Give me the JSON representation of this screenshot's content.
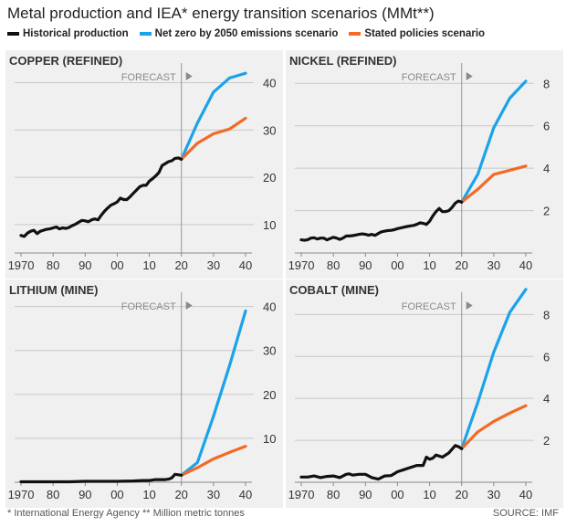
{
  "title": "Metal production and IEA* energy transition scenarios (MMt**)",
  "legend": [
    {
      "label": "Historical production",
      "color": "#111111"
    },
    {
      "label": "Net zero by 2050 emissions scenario",
      "color": "#1aa3e8"
    },
    {
      "label": "Stated policies scenario",
      "color": "#f26a25"
    }
  ],
  "forecast_label": "FORECAST",
  "footnotes": {
    "left": "* International Energy Agency    ** Million metric tonnes",
    "source": "SOURCE: IMF"
  },
  "x_tick_labels": [
    "1970",
    "80",
    "90",
    "00",
    "10",
    "20",
    "30",
    "40"
  ],
  "chart_data": [
    {
      "type": "line",
      "title": "COPPER (REFINED)",
      "xlim": [
        1968,
        2042
      ],
      "ylim": [
        4,
        43
      ],
      "y_ticks": [
        10,
        20,
        30,
        40
      ],
      "forecast_start": 2020,
      "series": [
        {
          "name": "Historical production",
          "color": "#111111",
          "x": [
            1970,
            1971,
            1972,
            1973,
            1974,
            1975,
            1976,
            1977,
            1978,
            1979,
            1980,
            1981,
            1982,
            1983,
            1984,
            1985,
            1986,
            1987,
            1988,
            1989,
            1990,
            1991,
            1992,
            1993,
            1994,
            1995,
            1996,
            1997,
            1998,
            1999,
            2000,
            2001,
            2002,
            2003,
            2004,
            2005,
            2006,
            2007,
            2008,
            2009,
            2010,
            2011,
            2012,
            2013,
            2014,
            2015,
            2016,
            2017,
            2018,
            2019,
            2020
          ],
          "y": [
            7.7,
            7.5,
            8.2,
            8.6,
            8.8,
            8.1,
            8.6,
            8.8,
            9.0,
            9.1,
            9.3,
            9.5,
            9.1,
            9.3,
            9.2,
            9.4,
            9.8,
            10.1,
            10.5,
            10.9,
            10.8,
            10.6,
            11.0,
            11.2,
            11.0,
            12.0,
            12.8,
            13.5,
            14.1,
            14.4,
            14.8,
            15.6,
            15.3,
            15.3,
            15.9,
            16.6,
            17.3,
            18.0,
            18.3,
            18.3,
            19.2,
            19.7,
            20.3,
            21.0,
            22.5,
            22.9,
            23.3,
            23.5,
            24.0,
            24.1,
            23.8
          ]
        },
        {
          "name": "Net zero by 2050 emissions scenario",
          "color": "#1aa3e8",
          "x": [
            2020,
            2025,
            2030,
            2035,
            2040
          ],
          "y": [
            23.8,
            31.5,
            38.0,
            41.0,
            42.0
          ]
        },
        {
          "name": "Stated policies scenario",
          "color": "#f26a25",
          "x": [
            2020,
            2025,
            2030,
            2035,
            2040
          ],
          "y": [
            23.8,
            27.2,
            29.2,
            30.2,
            32.5
          ]
        }
      ]
    },
    {
      "type": "line",
      "title": "NICKEL (REFINED)",
      "xlim": [
        1968,
        2042
      ],
      "ylim": [
        0,
        8.7
      ],
      "y_ticks": [
        2,
        4,
        6,
        8
      ],
      "forecast_start": 2020,
      "series": [
        {
          "name": "Historical production",
          "color": "#111111",
          "x": [
            1970,
            1971,
            1972,
            1973,
            1974,
            1975,
            1976,
            1977,
            1978,
            1979,
            1980,
            1981,
            1982,
            1983,
            1984,
            1985,
            1986,
            1987,
            1988,
            1989,
            1990,
            1991,
            1992,
            1993,
            1994,
            1995,
            1996,
            1997,
            1998,
            1999,
            2000,
            2001,
            2002,
            2003,
            2004,
            2005,
            2006,
            2007,
            2008,
            2009,
            2010,
            2011,
            2012,
            2013,
            2014,
            2015,
            2016,
            2017,
            2018,
            2019,
            2020
          ],
          "y": [
            0.62,
            0.6,
            0.63,
            0.7,
            0.72,
            0.66,
            0.7,
            0.7,
            0.62,
            0.68,
            0.74,
            0.7,
            0.64,
            0.7,
            0.8,
            0.8,
            0.82,
            0.85,
            0.88,
            0.9,
            0.88,
            0.84,
            0.88,
            0.83,
            0.92,
            1.0,
            1.03,
            1.06,
            1.07,
            1.1,
            1.15,
            1.18,
            1.22,
            1.25,
            1.28,
            1.3,
            1.35,
            1.42,
            1.4,
            1.35,
            1.5,
            1.75,
            1.95,
            2.1,
            1.95,
            1.95,
            2.0,
            2.15,
            2.35,
            2.45,
            2.4
          ]
        },
        {
          "name": "Net zero by 2050 emissions scenario",
          "color": "#1aa3e8",
          "x": [
            2020,
            2025,
            2030,
            2035,
            2040
          ],
          "y": [
            2.4,
            3.7,
            5.9,
            7.3,
            8.1
          ]
        },
        {
          "name": "Stated policies scenario",
          "color": "#f26a25",
          "x": [
            2020,
            2025,
            2030,
            2035,
            2040
          ],
          "y": [
            2.4,
            3.0,
            3.7,
            3.9,
            4.1
          ]
        }
      ]
    },
    {
      "type": "line",
      "title": "LITHIUM (MINE)",
      "xlim": [
        1968,
        2042
      ],
      "ylim": [
        0,
        42
      ],
      "y_ticks": [
        10,
        20,
        30,
        40
      ],
      "forecast_start": 2020,
      "series": [
        {
          "name": "Historical production",
          "color": "#111111",
          "x": [
            1970,
            1975,
            1980,
            1985,
            1990,
            1995,
            2000,
            2005,
            2008,
            2010,
            2012,
            2014,
            2015,
            2016,
            2017,
            2018,
            2019,
            2020
          ],
          "y": [
            0.1,
            0.1,
            0.1,
            0.1,
            0.2,
            0.2,
            0.2,
            0.3,
            0.4,
            0.4,
            0.6,
            0.6,
            0.6,
            0.7,
            1.0,
            1.8,
            1.7,
            1.6
          ]
        },
        {
          "name": "Net zero by 2050 emissions scenario",
          "color": "#1aa3e8",
          "x": [
            2020,
            2025,
            2030,
            2035,
            2040
          ],
          "y": [
            1.6,
            4.5,
            15.0,
            26.5,
            39.0
          ]
        },
        {
          "name": "Stated policies scenario",
          "color": "#f26a25",
          "x": [
            2020,
            2025,
            2030,
            2035,
            2040
          ],
          "y": [
            1.6,
            3.3,
            5.3,
            6.8,
            8.2
          ]
        }
      ]
    },
    {
      "type": "line",
      "title": "COBALT (MINE)",
      "xlim": [
        1968,
        2042
      ],
      "ylim": [
        0,
        8.8
      ],
      "y_ticks": [
        2,
        4,
        6,
        8
      ],
      "forecast_start": 2020,
      "series": [
        {
          "name": "Historical production",
          "color": "#111111",
          "x": [
            1970,
            1972,
            1974,
            1976,
            1978,
            1980,
            1982,
            1984,
            1985,
            1986,
            1988,
            1990,
            1992,
            1994,
            1996,
            1998,
            2000,
            2002,
            2004,
            2006,
            2008,
            2009,
            2010,
            2011,
            2012,
            2014,
            2016,
            2018,
            2019,
            2020
          ],
          "y": [
            0.25,
            0.25,
            0.3,
            0.22,
            0.28,
            0.3,
            0.22,
            0.38,
            0.4,
            0.34,
            0.38,
            0.38,
            0.22,
            0.15,
            0.3,
            0.32,
            0.5,
            0.6,
            0.7,
            0.8,
            0.8,
            1.2,
            1.1,
            1.15,
            1.3,
            1.2,
            1.4,
            1.75,
            1.7,
            1.6
          ]
        },
        {
          "name": "Net zero by 2050 emissions scenario",
          "color": "#1aa3e8",
          "x": [
            2020,
            2025,
            2030,
            2035,
            2040
          ],
          "y": [
            1.6,
            3.8,
            6.2,
            8.1,
            9.2
          ]
        },
        {
          "name": "Stated policies scenario",
          "color": "#f26a25",
          "x": [
            2020,
            2025,
            2030,
            2035,
            2040
          ],
          "y": [
            1.6,
            2.4,
            2.9,
            3.3,
            3.65
          ]
        }
      ]
    }
  ]
}
